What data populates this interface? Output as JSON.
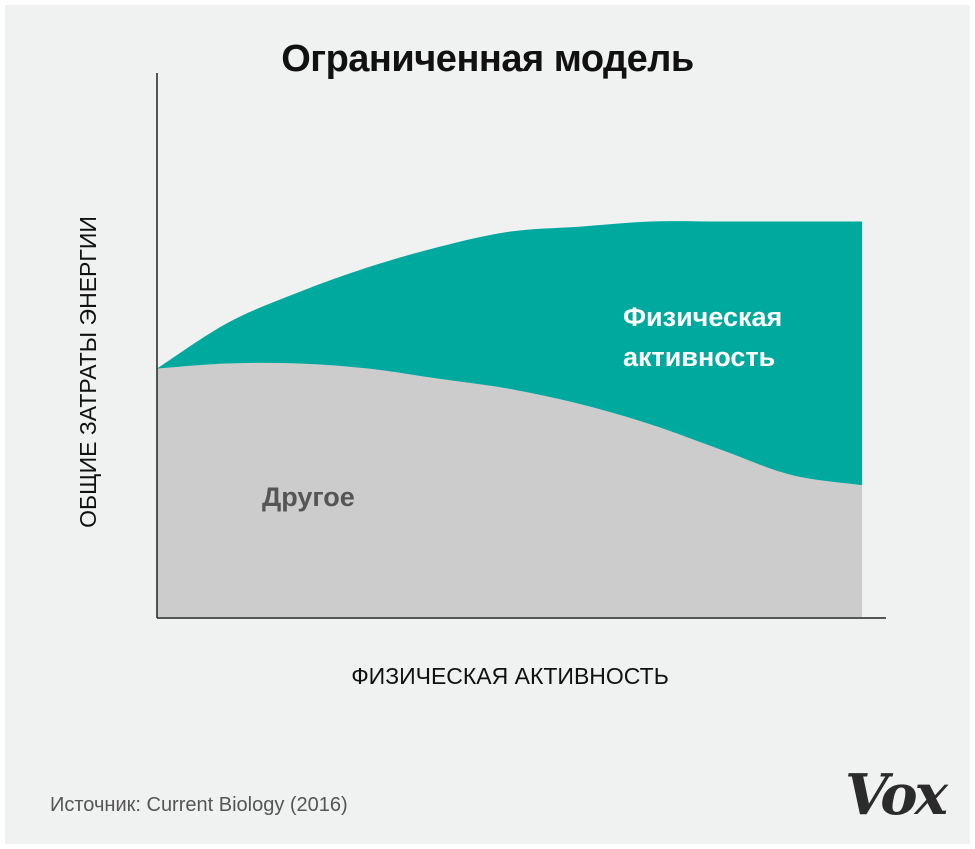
{
  "chart_data": {
    "type": "area",
    "stacked": true,
    "title": "Ограниченная модель",
    "xlabel": "ФИЗИЧЕСКАЯ АКТИВНОСТЬ",
    "ylabel": "ОБЩИЕ ЗАТРАТЫ ЭНЕРГИИ",
    "x": [
      0,
      0.1,
      0.2,
      0.3,
      0.4,
      0.5,
      0.6,
      0.7,
      0.8,
      0.9,
      1.0
    ],
    "xlim": [
      0,
      1
    ],
    "ylim": [
      0,
      1
    ],
    "grid": false,
    "series": [
      {
        "name": "Другое",
        "color": "#cccccc",
        "values": [
          0.49,
          0.5,
          0.5,
          0.49,
          0.47,
          0.45,
          0.42,
          0.38,
          0.33,
          0.28,
          0.26
        ]
      },
      {
        "name": "Физическая активность",
        "color": "#00a99d",
        "values": [
          0.0,
          0.08,
          0.14,
          0.2,
          0.26,
          0.31,
          0.35,
          0.4,
          0.45,
          0.5,
          0.52
        ]
      }
    ],
    "annotations": {
      "other": "Другое",
      "pa_line1": "Физическая",
      "pa_line2": "активность"
    }
  },
  "source": "Источник: Current Biology (2016)",
  "logo": "Vox"
}
